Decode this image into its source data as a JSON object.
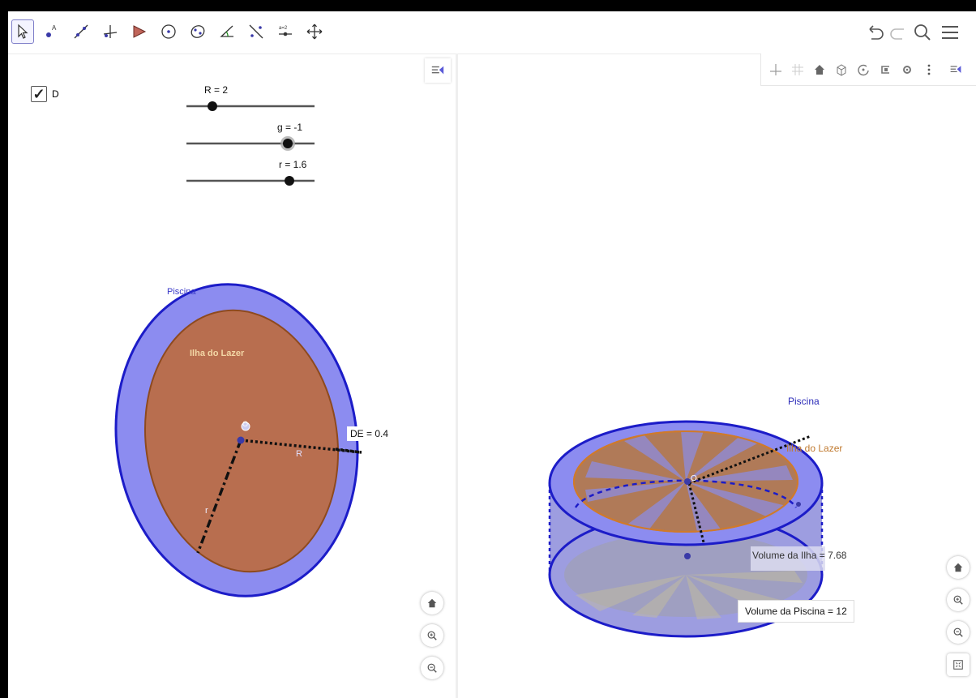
{
  "checkbox": {
    "label": "D",
    "checked": true
  },
  "sliders": [
    {
      "label": "R = 2",
      "value": 2
    },
    {
      "label": "g = -1",
      "value": -1
    },
    {
      "label": "r = 1.6",
      "value": 1.6
    }
  ],
  "graphics2d": {
    "piscina_label": "Piscina",
    "ilha_label": "Ilha do Lazer",
    "de_label": "DE = 0.4",
    "center_label": "O",
    "radius_R_label": "R",
    "radius_r_label": "r"
  },
  "graphics3d": {
    "piscina_label": "Piscina",
    "ilha_label": "Ilha do Lazer",
    "center_label": "O",
    "volume_ilha": "Volume da Ilha = 7.68",
    "volume_piscina": "Volume da Piscina = 12"
  },
  "colors": {
    "pool_blue": "#8c8cf0",
    "pool_stroke": "#1c1cc8",
    "island_brown": "#b86e4f",
    "island_stroke": "#8e4a1e",
    "island_orange": "#d88a3a"
  },
  "icons": {
    "toolbar": [
      "move-icon",
      "point-icon",
      "line-icon",
      "perpendicular-icon",
      "polygon-icon",
      "circle-icon",
      "ellipse-icon",
      "angle-icon",
      "reflect-icon",
      "slider-icon",
      "move-view-icon"
    ],
    "right": [
      "undo-icon",
      "redo-icon",
      "search-icon",
      "menu-icon"
    ]
  }
}
